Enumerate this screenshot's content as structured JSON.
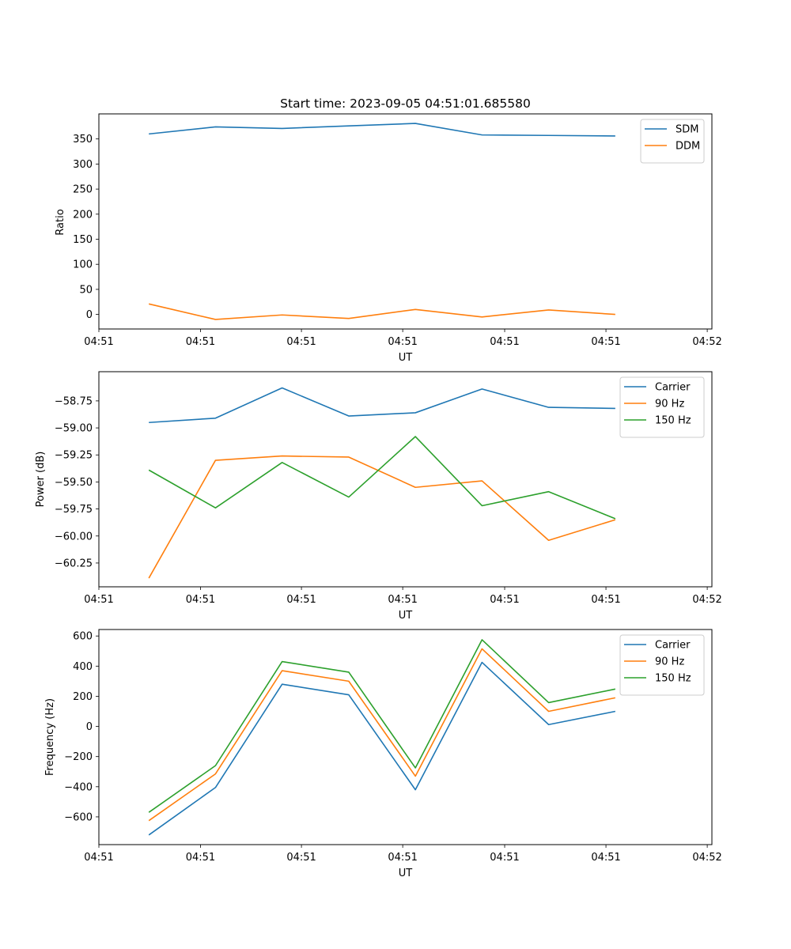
{
  "chart_data": [
    {
      "type": "line",
      "title": "Start time: 2023-09-05 04:51:01.685580",
      "xlabel": "UT",
      "ylabel": "Ratio",
      "x": [
        0,
        1,
        2,
        3,
        4,
        5,
        6,
        7
      ],
      "xlim": [
        -0.75,
        8.45
      ],
      "xticks": [
        -0.75,
        0.775,
        2.29,
        3.81,
        5.34,
        6.86,
        8.38
      ],
      "xtick_labels": [
        "04:51",
        "04:51",
        "04:51",
        "04:51",
        "04:51",
        "04:51",
        "04:52"
      ],
      "ylim": [
        -29,
        400
      ],
      "yticks": [
        0,
        50,
        100,
        150,
        200,
        250,
        300,
        350
      ],
      "ytick_labels": [
        "0",
        "50",
        "100",
        "150",
        "200",
        "250",
        "300",
        "350"
      ],
      "legend_position": "top-right",
      "series": [
        {
          "name": "SDM",
          "color": "#1f77b4",
          "values": [
            360,
            374,
            371,
            376,
            381,
            358,
            357,
            356
          ]
        },
        {
          "name": "DDM",
          "color": "#ff7f0e",
          "values": [
            21,
            -10,
            -1,
            -8,
            10,
            -5,
            9,
            0
          ]
        }
      ]
    },
    {
      "type": "line",
      "title": "",
      "xlabel": "UT",
      "ylabel": "Power (dB)",
      "x": [
        0,
        1,
        2,
        3,
        4,
        5,
        6,
        7
      ],
      "xlim": [
        -0.75,
        8.45
      ],
      "xticks": [
        -0.75,
        0.775,
        2.29,
        3.81,
        5.34,
        6.86,
        8.38
      ],
      "xtick_labels": [
        "04:51",
        "04:51",
        "04:51",
        "04:51",
        "04:51",
        "04:51",
        "04:52"
      ],
      "ylim": [
        -60.47,
        -58.48
      ],
      "yticks": [
        -60.25,
        -60.0,
        -59.75,
        -59.5,
        -59.25,
        -59.0,
        -58.75
      ],
      "ytick_labels": [
        "−60.25",
        "−60.00",
        "−59.75",
        "−59.50",
        "−59.25",
        "−59.00",
        "−58.75"
      ],
      "legend_position": "top-right",
      "series": [
        {
          "name": "Carrier",
          "color": "#1f77b4",
          "values": [
            -58.95,
            -58.91,
            -58.63,
            -58.89,
            -58.86,
            -58.64,
            -58.81,
            -58.82
          ]
        },
        {
          "name": "90 Hz",
          "color": "#ff7f0e",
          "values": [
            -60.39,
            -59.3,
            -59.26,
            -59.27,
            -59.55,
            -59.49,
            -60.04,
            -59.85
          ]
        },
        {
          "name": "150 Hz",
          "color": "#2ca02c",
          "values": [
            -59.39,
            -59.74,
            -59.32,
            -59.64,
            -59.08,
            -59.72,
            -59.59,
            -59.84
          ]
        }
      ]
    },
    {
      "type": "line",
      "title": "",
      "xlabel": "UT",
      "ylabel": "Frequency (Hz)",
      "x": [
        0,
        1,
        2,
        3,
        4,
        5,
        6,
        7
      ],
      "xlim": [
        -0.75,
        8.45
      ],
      "xticks": [
        -0.75,
        0.775,
        2.29,
        3.81,
        5.34,
        6.86,
        8.38
      ],
      "xtick_labels": [
        "04:51",
        "04:51",
        "04:51",
        "04:51",
        "04:51",
        "04:51",
        "04:52"
      ],
      "ylim": [
        -784,
        643
      ],
      "yticks": [
        -600,
        -400,
        -200,
        0,
        200,
        400,
        600
      ],
      "ytick_labels": [
        "−600",
        "−400",
        "−200",
        "0",
        "200",
        "400",
        "600"
      ],
      "legend_position": "top-right",
      "series": [
        {
          "name": "Carrier",
          "color": "#1f77b4",
          "values": [
            -720,
            -405,
            280,
            210,
            -420,
            425,
            12,
            100
          ]
        },
        {
          "name": "90 Hz",
          "color": "#ff7f0e",
          "values": [
            -625,
            -315,
            370,
            300,
            -330,
            515,
            100,
            190
          ]
        },
        {
          "name": "150 Hz",
          "color": "#2ca02c",
          "values": [
            -570,
            -260,
            430,
            360,
            -275,
            575,
            158,
            248
          ]
        }
      ]
    }
  ]
}
